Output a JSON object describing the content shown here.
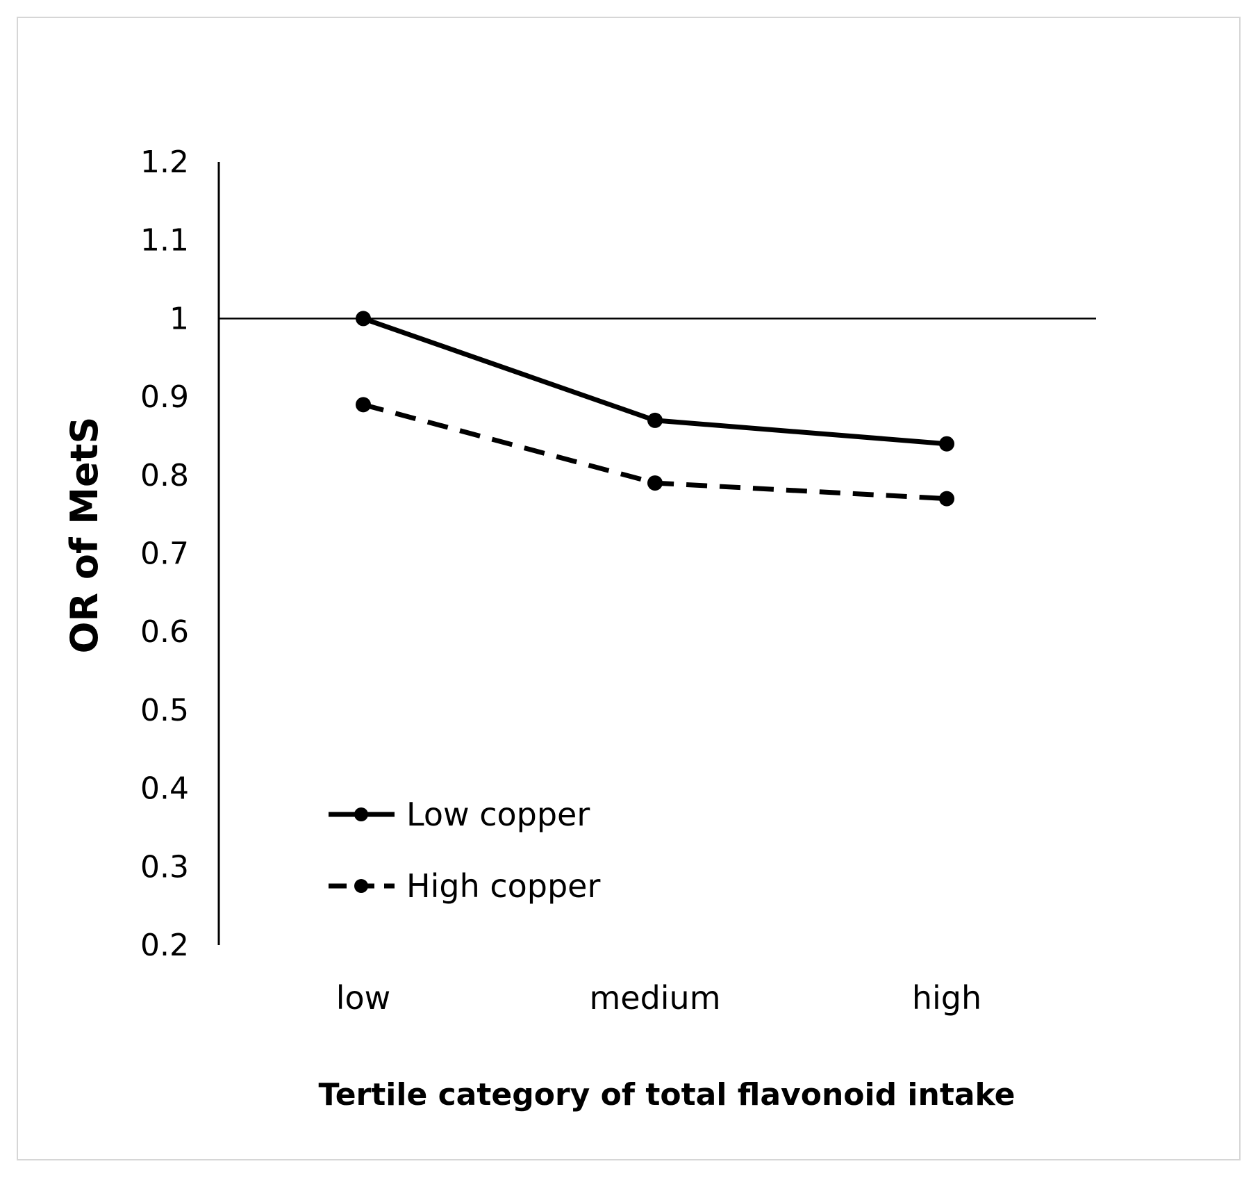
{
  "chart_data": {
    "type": "line",
    "title": "",
    "xlabel": "Tertile category of total flavonoid intake",
    "ylabel": "OR of MetS",
    "categories": [
      "low",
      "medium",
      "high"
    ],
    "ylim": [
      0.2,
      1.2
    ],
    "yticks": [
      "1.2",
      "1.1",
      "1",
      "0.9",
      "0.8",
      "0.7",
      "0.6",
      "0.5",
      "0.4",
      "0.3",
      "0.2"
    ],
    "reference_line": 1.0,
    "grid": false,
    "legend_position": "bottom-left",
    "series": [
      {
        "name": "Low copper",
        "style": "solid",
        "values": [
          1.0,
          0.87,
          0.84
        ]
      },
      {
        "name": "High copper",
        "style": "dashed",
        "values": [
          0.89,
          0.79,
          0.77
        ]
      }
    ]
  },
  "colors": {
    "line": "#000000",
    "frame": "#d6d6d6",
    "background": "#ffffff"
  }
}
